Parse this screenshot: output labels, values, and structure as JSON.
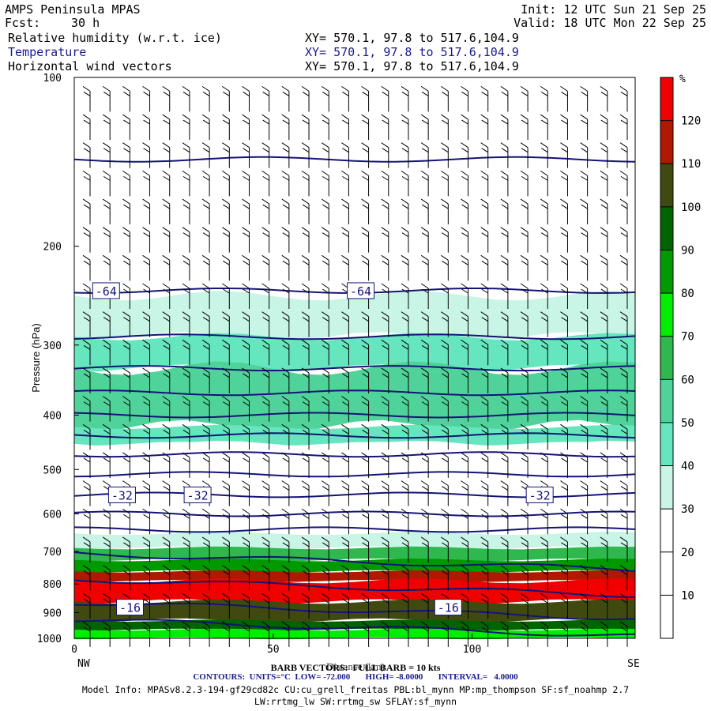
{
  "header": {
    "title": "AMPS Peninsula MPAS",
    "init": "Init: 12 UTC Sun 21 Sep 25",
    "fcst_label": "Fcst:",
    "fcst_value": "30 h",
    "valid": "Valid: 18 UTC Mon 22 Sep 25",
    "fields": [
      {
        "label": "Relative humidity (w.r.t. ice)",
        "xy": "XY= 570.1, 97.8 to 517.6,104.9",
        "color": "#000000"
      },
      {
        "label": "Temperature",
        "xy": "XY= 570.1, 97.8 to 517.6,104.9",
        "color": "#1a1a8c"
      },
      {
        "label": "Horizontal wind vectors",
        "xy": "XY= 570.1, 97.8 to 517.6,104.9",
        "color": "#000000"
      }
    ]
  },
  "chart_data": {
    "type": "heatmap",
    "ylabel": "Pressure (hPa)",
    "xlabel": "Distance (km)",
    "x_ticks": [
      0,
      50,
      100
    ],
    "x_end_labels": {
      "left": "NW",
      "right": "SE"
    },
    "xlim": [
      0,
      141
    ],
    "y_ticks": [
      100,
      200,
      300,
      400,
      500,
      600,
      700,
      800,
      900,
      1000
    ],
    "ylim": [
      1000,
      100
    ],
    "y_scale": "log",
    "colorbar": {
      "unit": "%",
      "levels": [
        10,
        20,
        30,
        40,
        50,
        60,
        70,
        80,
        90,
        100,
        110,
        120
      ],
      "colors": [
        "#ffffff",
        "#ffffff",
        "#ffffff",
        "#c8f5e6",
        "#66e6be",
        "#4fd39a",
        "#2eb84e",
        "#00ee00",
        "#009900",
        "#006400",
        "#404a10",
        "#b01800",
        "#f00000"
      ]
    },
    "rh_layers": [
      {
        "p_top": 245,
        "p_bot": 290,
        "rh": 32
      },
      {
        "p_top": 290,
        "p_bot": 330,
        "rh": 42
      },
      {
        "p_top": 330,
        "p_bot": 420,
        "rh": 55
      },
      {
        "p_top": 420,
        "p_bot": 450,
        "rh": 42
      },
      {
        "p_top": 450,
        "p_bot": 500,
        "rh": 25
      },
      {
        "p_top": 500,
        "p_bot": 650,
        "rh": 22
      },
      {
        "p_top": 650,
        "p_bot": 690,
        "rh": 35
      },
      {
        "p_top": 690,
        "p_bot": 725,
        "rh": 60
      },
      {
        "p_top": 725,
        "p_bot": 760,
        "rh": 85
      },
      {
        "p_top": 760,
        "p_bot": 790,
        "rh": 112
      },
      {
        "p_top": 790,
        "p_bot": 860,
        "rh": 120
      },
      {
        "p_top": 860,
        "p_bot": 930,
        "rh": 105
      },
      {
        "p_top": 930,
        "p_bot": 965,
        "rh": 95
      },
      {
        "p_top": 965,
        "p_bot": 1000,
        "rh": 75
      }
    ],
    "temperature_contours": {
      "interval": 4,
      "levels_hPa": [
        140,
        240,
        290,
        330,
        365,
        400,
        435,
        470,
        510,
        555,
        600,
        640,
        720,
        800,
        880,
        945
      ],
      "labels": [
        {
          "text": "-64",
          "x_km": 8,
          "p": 240
        },
        {
          "text": "-64",
          "x_km": 72,
          "p": 240
        },
        {
          "text": "-32",
          "x_km": 12,
          "p": 555
        },
        {
          "text": "-32",
          "x_km": 31,
          "p": 555
        },
        {
          "text": "-32",
          "x_km": 117,
          "p": 555
        },
        {
          "text": "-16",
          "x_km": 14,
          "p": 880
        },
        {
          "text": "-16",
          "x_km": 94,
          "p": 880
        }
      ]
    },
    "wind_barbs": {
      "columns": 28,
      "rows": 20
    }
  },
  "footer": {
    "barb_note": "BARB VECTORS:  FULL BARB = 10 kts",
    "contours": "CONTOURS:  UNITS=°C  LOW= -72.000       HIGH= -8.0000       INTERVAL=   4.0000",
    "model_info": "Model Info: MPASv8.2.3-194-gf29cd82c CU:cu_grell_freitas PBL:bl_mynn MP:mp_thompson SF:sf_noahmp 2.7",
    "model_info2": "LW:rrtmg_lw SW:rrtmg_sw SFLAY:sf_mynn"
  }
}
